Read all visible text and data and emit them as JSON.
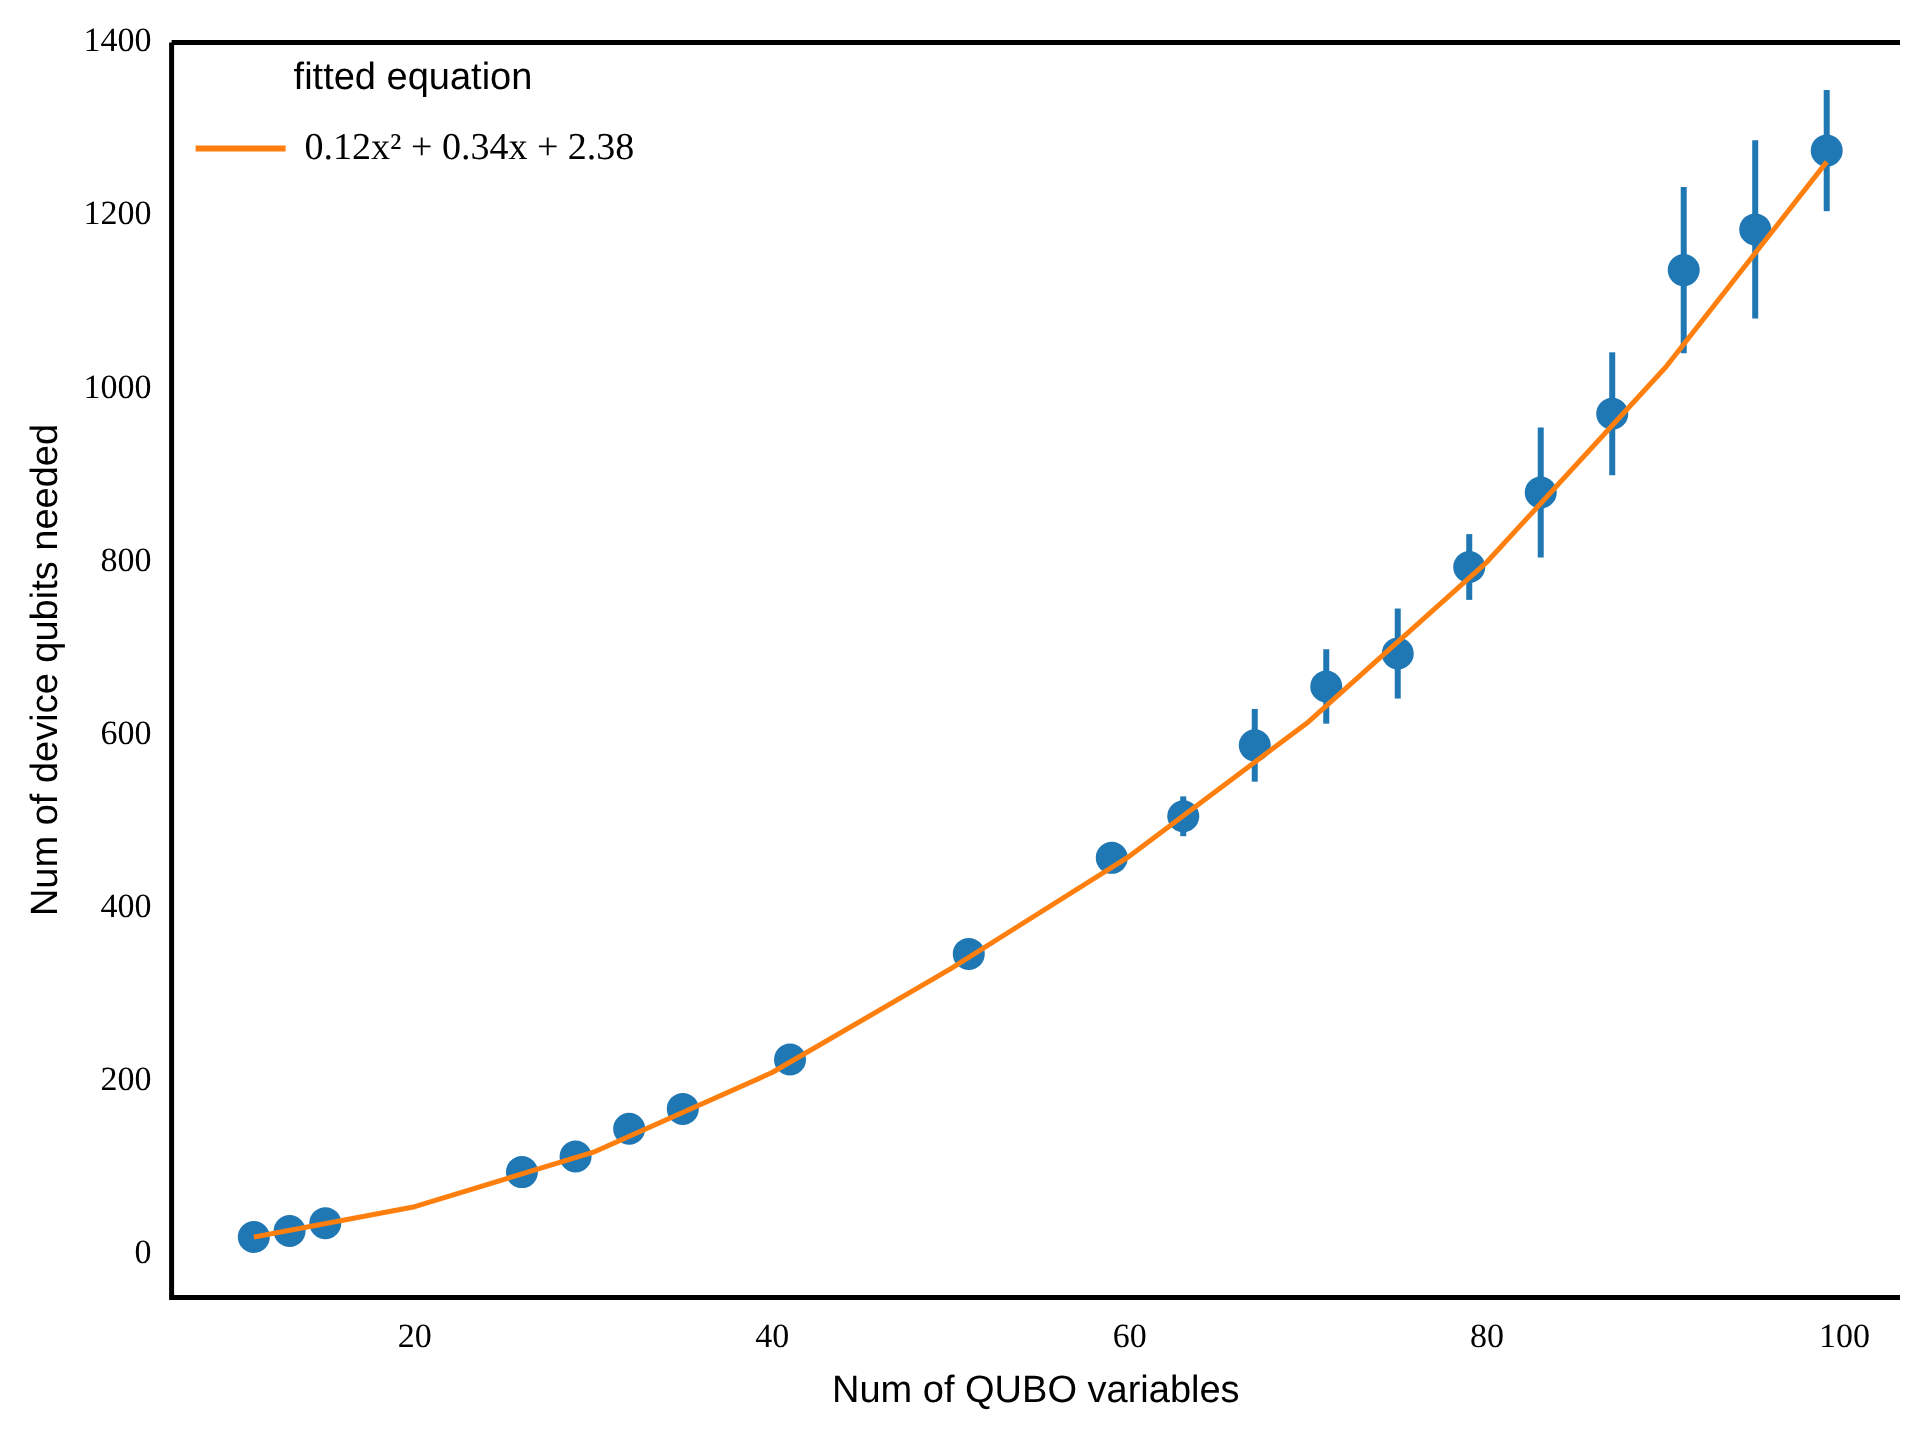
{
  "chart_data": {
    "type": "scatter",
    "xlabel": "Num of QUBO variables",
    "ylabel": "Num of device qubits needed",
    "legend_title": "fitted equation",
    "xlim": [
      6.4,
      103.1
    ],
    "xticks": [
      20,
      40,
      60,
      80,
      100
    ],
    "ylim": [
      -50,
      1400
    ],
    "yticks": [
      0,
      200,
      400,
      600,
      800,
      1000,
      1200,
      1400
    ],
    "legend": "top left",
    "marker": "circle",
    "grid": false,
    "series": [
      {
        "type": "scatter",
        "color": "#1f77b4",
        "x": [
          11,
          13,
          15,
          26,
          29,
          32,
          35,
          41,
          51,
          59,
          63,
          67,
          71,
          75,
          79,
          83,
          87,
          91,
          95,
          99
        ],
        "values": [
          20,
          27,
          36,
          95,
          113,
          145,
          168,
          225,
          347,
          458,
          506,
          588,
          656,
          694,
          794,
          880,
          971,
          1137,
          1184,
          1275
        ],
        "errors": [
          null,
          null,
          null,
          null,
          null,
          null,
          null,
          null,
          null,
          null,
          23,
          42,
          43,
          52,
          38,
          75,
          71,
          96,
          103,
          70
        ]
      },
      {
        "type": "line",
        "name": "0.12x² + 0.34x + 2.38",
        "color": "#ff7f0e",
        "marker": "none",
        "line_style": "solid",
        "x": [
          11,
          20,
          30,
          40,
          50,
          60,
          70,
          80,
          90,
          99
        ],
        "values": [
          20,
          55,
          118,
          210,
          330,
          460,
          615,
          800,
          1025,
          1262
        ]
      }
    ]
  }
}
